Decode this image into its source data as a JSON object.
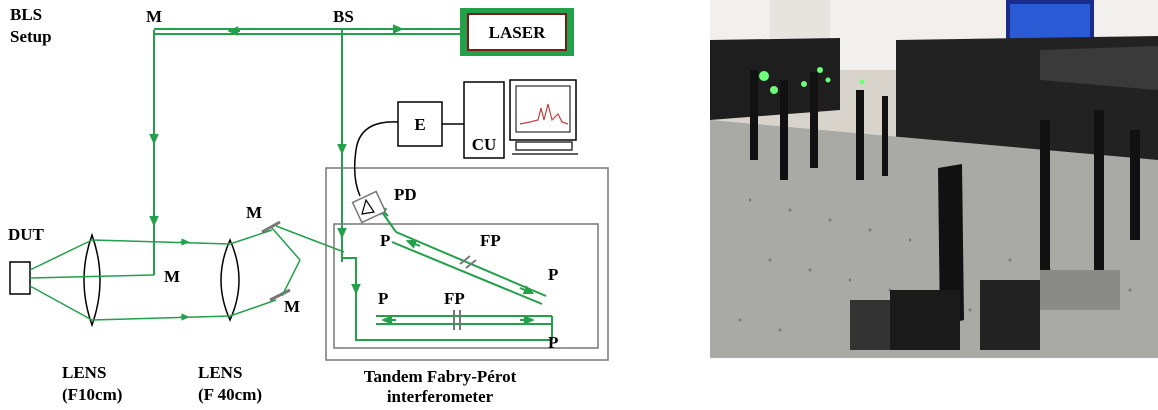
{
  "setup_title": [
    "BLS",
    "Setup"
  ],
  "labels": {
    "mirror": "M",
    "beam_splitter": "BS",
    "laser": "LASER",
    "dut": "DUT",
    "electronics": "E",
    "control_unit": "CU",
    "photodetector": "PD",
    "prism": "P",
    "fabry_perot": "FP"
  },
  "lens1": [
    "LENS",
    "(F10cm)"
  ],
  "lens2": [
    "LENS",
    "(F 40cm)"
  ],
  "tfp": [
    "Tandem Fabry-Pérot",
    "interferometer"
  ],
  "colors": {
    "beam": "#22a04a",
    "laser_border": "#22a04a"
  },
  "photo": {
    "icon": "lab-optical-table-photo"
  }
}
